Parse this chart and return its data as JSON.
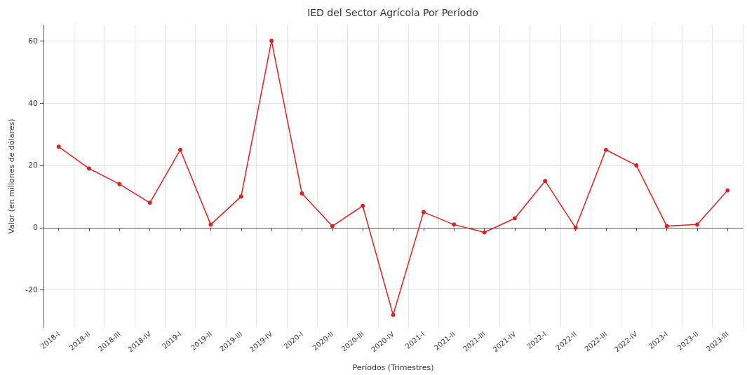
{
  "chart_data": {
    "type": "line",
    "title": "IED del Sector Agrícola Por Período",
    "xlabel": "Períodos (Trimestres)",
    "ylabel": "Valor (en millones de dólares)",
    "categories": [
      "2018-I",
      "2018-II",
      "2018-III",
      "2018-IV",
      "2019-I",
      "2019-II",
      "2019-III",
      "2019-IV",
      "2020-I",
      "2020-II",
      "2020-III",
      "2020-IV",
      "2021-I",
      "2021-II",
      "2021-III",
      "2021-IV",
      "2022-I",
      "2022-II",
      "2022-III",
      "2022-IV",
      "2023-I",
      "2023-II",
      "2023-III"
    ],
    "series": [
      {
        "color": "#dd2020",
        "values": [
          26,
          19,
          14,
          8,
          25,
          1,
          10,
          60,
          11,
          0.5,
          7,
          -28,
          5,
          1,
          -1.5,
          3,
          15,
          0,
          25,
          20,
          0.5,
          1,
          12
        ]
      }
    ],
    "ylim": [
      -32,
      65
    ],
    "yticks": [
      -20,
      0,
      20,
      40,
      60
    ],
    "grid": true,
    "marker": "circle",
    "line_style": "solid"
  }
}
